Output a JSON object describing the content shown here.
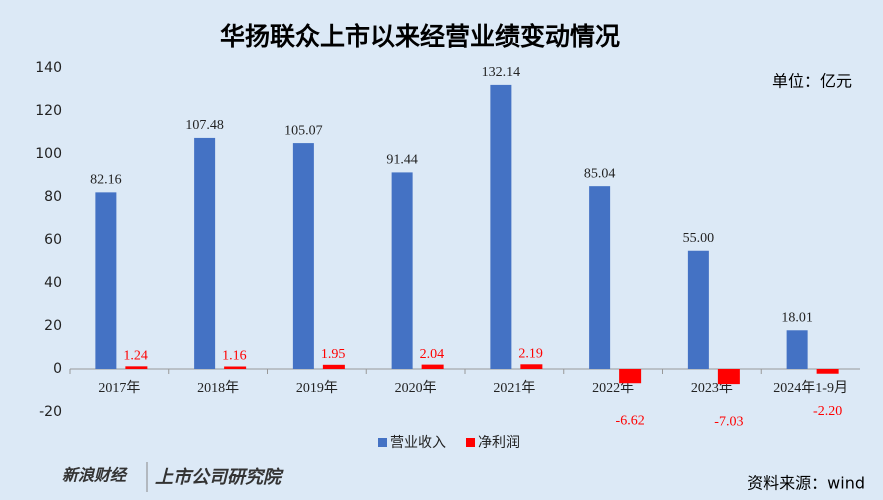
{
  "chart_data": {
    "type": "bar",
    "title": "华扬联众上市以来经营业绩变动情况",
    "unit_label": "单位：亿元",
    "source": "资料来源：wind",
    "watermark": [
      "新浪财经",
      "上市公司研究院"
    ],
    "categories": [
      "2017年",
      "2018年",
      "2019年",
      "2020年",
      "2021年",
      "2022年",
      "2023年",
      "2024年1-9月"
    ],
    "series": [
      {
        "name": "营业收入",
        "color": "#4472c4",
        "values": [
          82.16,
          107.48,
          105.07,
          91.44,
          132.14,
          85.04,
          55.0,
          18.01
        ],
        "value_labels": [
          "82.16",
          "107.48",
          "105.07",
          "91.44",
          "132.14",
          "85.04",
          "55.00",
          "18.01"
        ]
      },
      {
        "name": "净利润",
        "color": "#ff0000",
        "values": [
          1.24,
          1.16,
          1.95,
          2.04,
          2.19,
          -6.62,
          -7.03,
          -2.2
        ],
        "value_labels": [
          "1.24",
          "1.16",
          "1.95",
          "2.04",
          "2.19",
          "-6.62",
          "-7.03",
          "-2.20"
        ]
      }
    ],
    "ylim": [
      -20,
      140
    ],
    "yticks": [
      -20,
      0,
      20,
      40,
      60,
      80,
      100,
      120,
      140
    ]
  }
}
